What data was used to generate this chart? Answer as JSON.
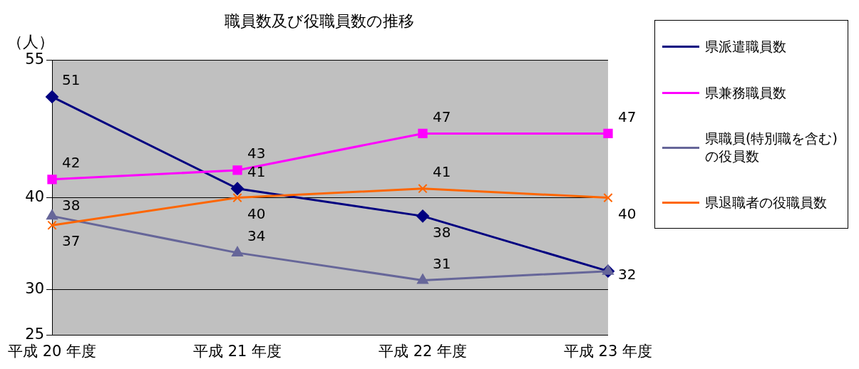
{
  "chart_data": {
    "type": "line",
    "title": "職員数及び役職員数の推移",
    "ylabel": "（人）",
    "categories": [
      "平成 20 年度",
      "平成 21 年度",
      "平成 22 年度",
      "平成 23 年度"
    ],
    "series": [
      {
        "name": "県派遣職員数",
        "color": "#000080",
        "marker": "diamond",
        "values": [
          51,
          41,
          38,
          32
        ],
        "value_labels": [
          "51",
          "41",
          "38",
          "32"
        ]
      },
      {
        "name": "県兼務職員数",
        "color": "#ff00ff",
        "marker": "square",
        "values": [
          42,
          43,
          47,
          47
        ],
        "value_labels": [
          "42",
          "43",
          "47",
          "47"
        ]
      },
      {
        "name": "県職員(特別職を含む)の役員数",
        "color": "#666699",
        "marker": "triangle",
        "values": [
          38,
          34,
          31,
          32
        ],
        "value_labels": [
          "38",
          "34",
          "31",
          null
        ]
      },
      {
        "name": "県退職者の役職員数",
        "color": "#ff6600",
        "marker": "cross",
        "values": [
          37,
          40,
          41,
          40
        ],
        "value_labels": [
          "37",
          "40",
          "41",
          "40"
        ]
      }
    ],
    "ylim": [
      25,
      55
    ],
    "yticks": [
      25,
      30,
      40,
      55
    ],
    "grid": "y",
    "legend": "right"
  }
}
